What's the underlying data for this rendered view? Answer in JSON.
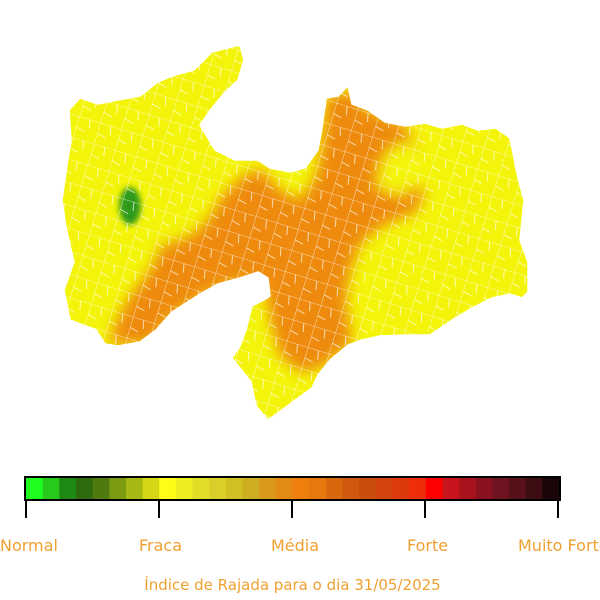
{
  "map": {
    "zone_colors": {
      "fraca": "#f4f40a",
      "media": "#ee8a0a",
      "normal": "#2e9a1a",
      "border": "#ffffff"
    }
  },
  "legend": {
    "colors": [
      "#1fff1f",
      "#27c91a",
      "#1e8a14",
      "#2e6b0f",
      "#4f7a10",
      "#7a9a12",
      "#a6b814",
      "#d4d616",
      "#fffc1a",
      "#eeed22",
      "#e2de28",
      "#d9cf28",
      "#d0c024",
      "#ccae20",
      "#d89a18",
      "#e28a12",
      "#ee7f0c",
      "#e6780c",
      "#d8680e",
      "#cf5a0e",
      "#c94e0c",
      "#d2440c",
      "#dc3a0c",
      "#ee2e0a",
      "#ff0000",
      "#c8141c",
      "#a8121c",
      "#8a1220",
      "#6e1420",
      "#561218",
      "#3c0e12",
      "#1a0608"
    ],
    "ticks": [
      "Normal",
      "Fraca",
      "Média",
      "Forte",
      "Muito Forte"
    ]
  },
  "caption": "Índice de Rajada para o dia 31/05/2025"
}
